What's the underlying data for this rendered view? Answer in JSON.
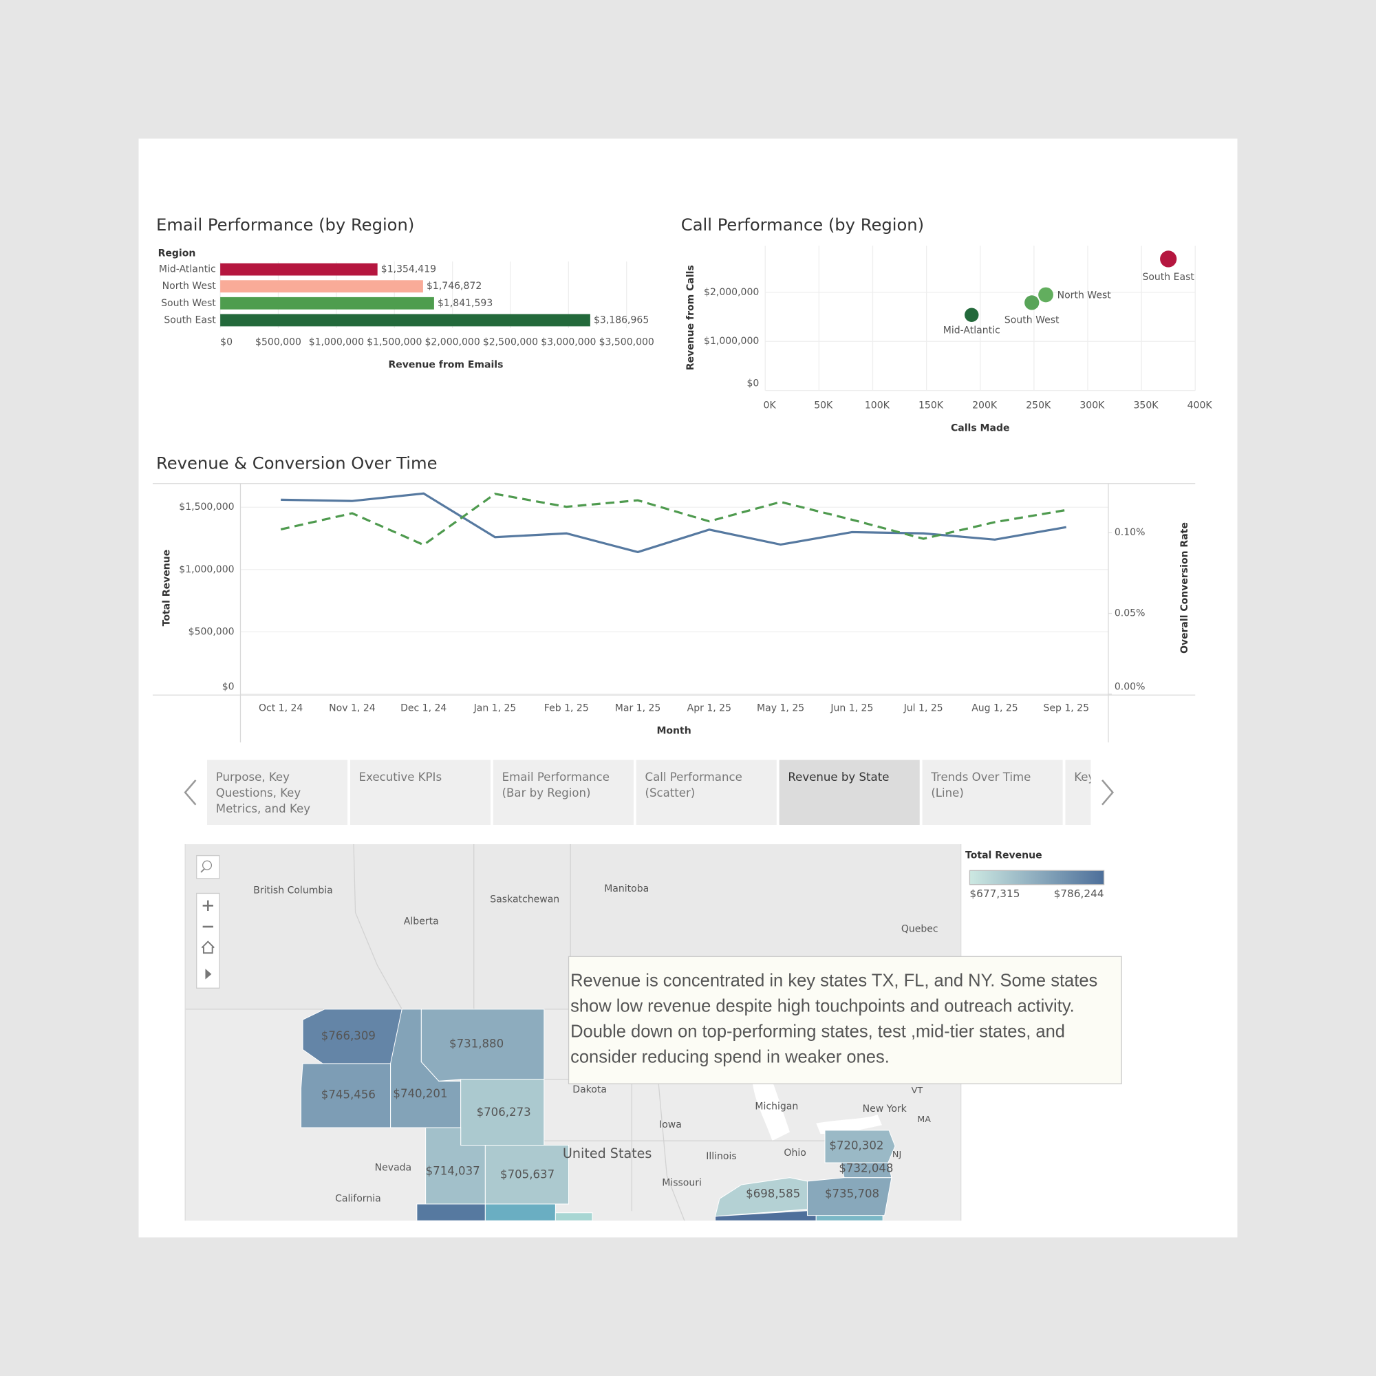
{
  "chart_data": [
    {
      "type": "bar",
      "orientation": "horizontal",
      "title": "Email Performance (by Region)",
      "legend_title": "Region",
      "categories": [
        "Mid-Atlantic",
        "North West",
        "South West",
        "South East"
      ],
      "values": [
        1354419,
        1746872,
        1841593,
        3186965
      ],
      "value_labels": [
        "$1,354,419",
        "$1,746,872",
        "$1,841,593",
        "$3,186,965"
      ],
      "colors": [
        "#b5163f",
        "#f9ab98",
        "#4e9d4e",
        "#23693b"
      ],
      "xlabel": "Revenue from Emails",
      "xlim": [
        0,
        3500000
      ],
      "xticks": [
        {
          "value": 0,
          "label": "$0"
        },
        {
          "value": 500000,
          "label": "$500,000"
        },
        {
          "value": 1000000,
          "label": "$1,000,000"
        },
        {
          "value": 1500000,
          "label": "$1,500,000"
        },
        {
          "value": 2000000,
          "label": "$2,000,000"
        },
        {
          "value": 2500000,
          "label": "$2,500,000"
        },
        {
          "value": 3000000,
          "label": "$3,000,000"
        },
        {
          "value": 3500000,
          "label": "$3,500,000"
        }
      ],
      "grid": true
    },
    {
      "type": "scatter",
      "title": "Call Performance (by Region)",
      "labels": [
        "Mid-Atlantic",
        "South West",
        "North West",
        "South East"
      ],
      "x": [
        192000,
        248000,
        261000,
        375000
      ],
      "values": [
        1540000,
        1790000,
        1950000,
        2680000
      ],
      "colors": [
        "#23693b",
        "#58a458",
        "#62ae5e",
        "#b5163f"
      ],
      "xlabel": "Calls Made",
      "ylabel": "Revenue from Calls",
      "xlim": [
        0,
        400000
      ],
      "ylim": [
        0,
        2950000
      ],
      "xticks": [
        {
          "value": 0,
          "label": "0K"
        },
        {
          "value": 50000,
          "label": "50K"
        },
        {
          "value": 100000,
          "label": "100K"
        },
        {
          "value": 150000,
          "label": "150K"
        },
        {
          "value": 200000,
          "label": "200K"
        },
        {
          "value": 250000,
          "label": "250K"
        },
        {
          "value": 300000,
          "label": "300K"
        },
        {
          "value": 350000,
          "label": "350K"
        },
        {
          "value": 400000,
          "label": "400K"
        }
      ],
      "yticks": [
        {
          "value": 0,
          "label": "$0"
        },
        {
          "value": 1000000,
          "label": "$1,000,000"
        },
        {
          "value": 2000000,
          "label": "$2,000,000"
        }
      ],
      "grid": true
    },
    {
      "type": "line",
      "title": "Revenue & Conversion Over Time",
      "xlabel": "Month",
      "categories": [
        "Oct 1, 24",
        "Nov 1, 24",
        "Dec 1, 24",
        "Jan 1, 25",
        "Feb 1, 25",
        "Mar 1, 25",
        "Apr 1, 25",
        "May 1, 25",
        "Jun 1, 25",
        "Jul 1, 25",
        "Aug 1, 25",
        "Sep 1, 25"
      ],
      "series": [
        {
          "name": "Total Revenue",
          "color": "#5679a0",
          "values": [
            1560000,
            1550000,
            1610000,
            1260000,
            1290000,
            1140000,
            1320000,
            1200000,
            1300000,
            1290000,
            1240000,
            1340000
          ]
        },
        {
          "name": "Overall Conversion Rate",
          "color": "#4e9a4e",
          "dashed": true,
          "axis": "y2",
          "values": [
            0.102,
            0.112,
            0.0924,
            0.124,
            0.116,
            0.12,
            0.107,
            0.119,
            0.108,
            0.0962,
            0.1065,
            0.114
          ]
        }
      ],
      "ylim": [
        0,
        1690000
      ],
      "yticks": [
        {
          "value": 0,
          "label": "$0"
        },
        {
          "value": 500000,
          "label": "$500,000"
        },
        {
          "value": 1000000,
          "label": "$1,000,000"
        },
        {
          "value": 1500000,
          "label": "$1,500,000"
        }
      ],
      "y2lim": [
        0,
        0.1304
      ],
      "y2ticks": [
        {
          "value": 0,
          "label": "0.00%"
        },
        {
          "value": 0.05,
          "label": "0.05%"
        },
        {
          "value": 0.1,
          "label": "0.10%"
        }
      ],
      "grid": true
    },
    {
      "type": "map",
      "legend_title": "Total Revenue",
      "color_min": {
        "value": 677315,
        "label": "$677,315",
        "color": "#cde9e2"
      },
      "color_max": {
        "value": 786244,
        "label": "$786,244",
        "color": "#4d6f9a"
      },
      "values": [
        766309,
        731880,
        745456,
        740201,
        706273,
        714037,
        705637,
        720302,
        732048,
        735708,
        698585
      ],
      "value_labels": [
        "$766,309",
        "$731,880",
        "$745,456",
        "$740,201",
        "$706,273",
        "$714,037",
        "$705,637",
        "$720,302",
        "$732,048",
        "$735,708",
        "$698,585"
      ],
      "place_labels": [
        "British Columbia",
        "Alberta",
        "Saskatchewan",
        "Manitoba",
        "Quebec",
        "Dakota",
        "Iowa",
        "Michigan",
        "Ohio",
        "Illinois",
        "Missouri",
        "Nevada",
        "California",
        "United States",
        "New York",
        "VT",
        "MA",
        "NJ"
      ],
      "annotation": "Revenue is concentrated in key states TX, FL, and NY. Some states show low revenue despite high touchpoints and outreach activity. Double down on top-performing states, test ,mid-tier states, and consider reducing spend in weaker ones."
    }
  ],
  "tabs": [
    {
      "label": "Purpose, Key Questions, Key Metrics, and Key",
      "selected": false
    },
    {
      "label": "Executive KPIs",
      "selected": false
    },
    {
      "label": "Email Performance (Bar by Region)",
      "selected": false
    },
    {
      "label": "Call Performance (Scatter)",
      "selected": false
    },
    {
      "label": "Revenue by State",
      "selected": true
    },
    {
      "label": "Trends Over Time (Line)",
      "selected": false
    },
    {
      "label": "Key Act",
      "selected": false
    }
  ]
}
